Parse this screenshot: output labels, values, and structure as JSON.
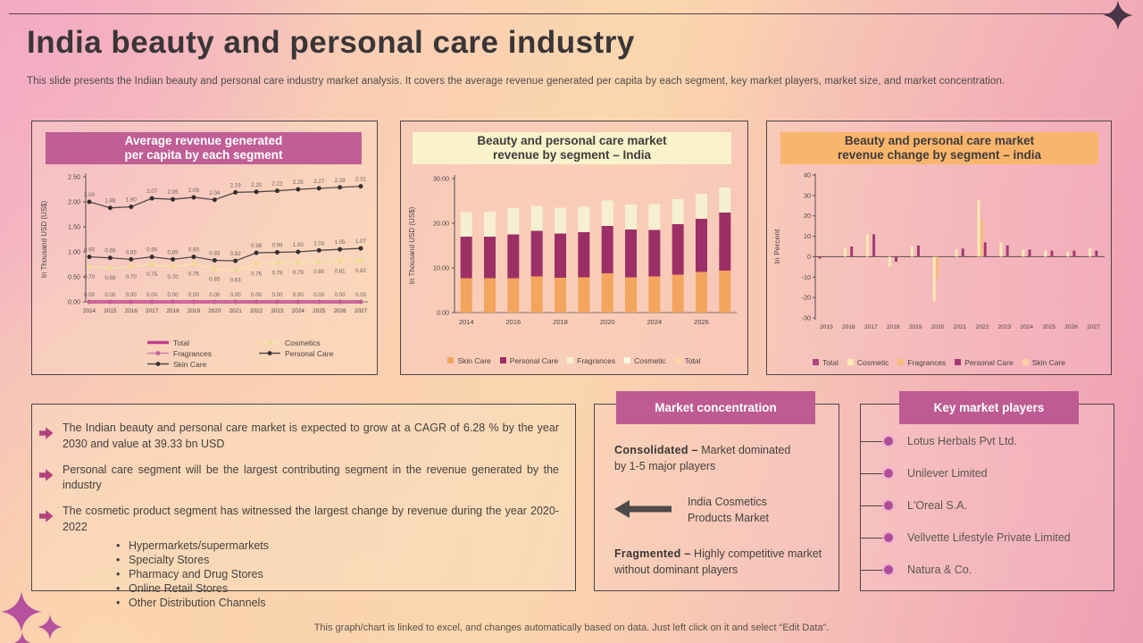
{
  "slide": {
    "title": "India beauty and personal care industry",
    "subtitle": "This slide presents the Indian beauty and personal care industry market analysis. It covers the average revenue generated per capita by each segment, key market players, market size, and market concentration.",
    "footer": "This graph/chart is linked to excel, and changes automatically based on data. Just left click on it and select “Edit Data”."
  },
  "chart_data": [
    {
      "type": "line",
      "title1": "Average revenue generated",
      "title2": "per capita by each segment",
      "ylabel": "In Thousand USD (US$)",
      "ylim": [
        0,
        2.5
      ],
      "ytick_values": [
        0,
        0.5,
        1,
        1.5,
        2,
        2.5
      ],
      "ytick_labels": [
        "0.00",
        "0.50",
        "1.00",
        "1.50",
        "2.00",
        "2.50"
      ],
      "categories": [
        "2014",
        "2015",
        "2016",
        "2017",
        "2018",
        "2019",
        "2020",
        "2021",
        "2022",
        "2023",
        "2024",
        "2025",
        "2026",
        "2027"
      ],
      "grid": false,
      "legend_position": "bottom",
      "series": [
        {
          "name": "Total",
          "color": "#c2418a",
          "marker": "#b8588f",
          "line_width": 3.5,
          "data_labels": "above",
          "values": [
            0,
            0,
            0,
            0,
            0,
            0,
            0,
            0,
            0,
            0,
            0,
            0,
            0,
            0
          ]
        },
        {
          "name": "Cosmetics",
          "color": "#f5e5a9",
          "marker": "#efd98f",
          "line_width": 1.3,
          "data_labels": "below",
          "values": [
            0.7,
            0.68,
            0.7,
            0.75,
            0.7,
            0.76,
            0.65,
            0.63,
            0.76,
            0.78,
            0.79,
            0.8,
            0.81,
            0.82
          ]
        },
        {
          "name": "Fragrances",
          "color": "#d07fae",
          "marker": "#c45f9b",
          "line_width": 1.2,
          "data_labels": "none",
          "values": [
            0,
            0,
            0,
            0,
            0,
            0,
            0,
            0,
            0,
            0,
            0,
            0,
            0,
            0
          ]
        },
        {
          "name": "Personal Care",
          "color": "#55494a",
          "marker": "#352e2f",
          "line_width": 1.3,
          "data_labels": "above",
          "values": [
            2.0,
            1.88,
            1.9,
            2.07,
            2.05,
            2.09,
            2.04,
            2.19,
            2.2,
            2.22,
            2.25,
            2.27,
            2.29,
            2.31
          ]
        },
        {
          "name": "Skin Care",
          "color": "#55494a",
          "marker": "#352e2f",
          "line_width": 1.3,
          "data_labels": "above",
          "values": [
            0.9,
            0.88,
            0.85,
            0.9,
            0.85,
            0.9,
            0.83,
            0.82,
            0.98,
            0.99,
            1.0,
            1.03,
            1.05,
            1.07
          ]
        }
      ]
    },
    {
      "type": "bar-stacked",
      "title1": "Beauty and personal care market",
      "title2": "revenue by segment – India",
      "ylabel": "In Thousand USD (US$)",
      "ylim": [
        0,
        30
      ],
      "ytick_values": [
        0,
        10,
        20,
        30
      ],
      "ytick_labels": [
        "0.00",
        "10.00",
        "20.00",
        "30.00"
      ],
      "x_tick_labels": [
        "2014",
        "2016",
        "2018",
        "2020",
        "2024",
        "2026"
      ],
      "x_tick_slots": [
        0,
        2,
        4,
        6,
        8,
        10
      ],
      "bar_count": 12,
      "grid": false,
      "legend_position": "bottom",
      "series": [
        {
          "name": "Skin Care",
          "color": "#f3a55e",
          "values": [
            7.7,
            7.7,
            7.7,
            8.1,
            7.8,
            7.9,
            8.8,
            7.9,
            8.1,
            8.5,
            9.1,
            9.4
          ]
        },
        {
          "name": "Personal Care",
          "color": "#9d2f67",
          "values": [
            9.3,
            9.3,
            9.8,
            10.2,
            9.9,
            10.1,
            10.6,
            10.7,
            10.4,
            11.3,
            11.9,
            13.0
          ]
        },
        {
          "name": "Fragrances",
          "color": "#f6efd1",
          "values": [
            5.5,
            5.6,
            5.9,
            5.6,
            5.8,
            5.7,
            5.7,
            5.6,
            5.8,
            5.6,
            5.6,
            5.6
          ]
        },
        {
          "name": "Cosmetic",
          "color": "#fbf6e3",
          "values": [
            0,
            0,
            0,
            0,
            0,
            0,
            0,
            0,
            0,
            0,
            0,
            0
          ]
        },
        {
          "name": "Total",
          "color": "#f8d8a2",
          "values": [
            0,
            0,
            0,
            0,
            0,
            0,
            0,
            0,
            0,
            0,
            0,
            0
          ]
        }
      ]
    },
    {
      "type": "bar-grouped",
      "title1": "Beauty and personal care market",
      "title2": "revenue change by segment – india",
      "ylabel": "In Percent",
      "ylim": [
        -30,
        40
      ],
      "ytick_values": [
        40,
        30,
        20,
        10,
        0,
        -10,
        -20,
        -30
      ],
      "ytick_labels": [
        "40",
        "30",
        "20",
        "10",
        "0",
        "-10",
        "-20",
        "-30"
      ],
      "categories": [
        "2015",
        "2016",
        "2017",
        "2018",
        "2019",
        "2020",
        "2021",
        "2022",
        "2023",
        "2024",
        "2025",
        "2026",
        "2027"
      ],
      "grid": false,
      "legend_position": "bottom",
      "series": [
        {
          "name": "Total",
          "color": "#b24580",
          "values": [
            -1,
            0,
            0,
            0,
            0,
            0,
            0,
            0,
            0,
            0,
            0,
            0,
            0
          ]
        },
        {
          "name": "Cosmetic",
          "color": "#fbeab4",
          "values": [
            0,
            4.5,
            11,
            -5,
            5,
            -22,
            3.5,
            28,
            7,
            3.5,
            3,
            2.5,
            4
          ]
        },
        {
          "name": "Fragrances",
          "color": "#f5bc7d",
          "values": [
            0,
            0,
            0,
            0,
            0,
            -10.5,
            0,
            18,
            0,
            0,
            0,
            0,
            0
          ]
        },
        {
          "name": "Personal Care",
          "color": "#a33b73",
          "values": [
            0,
            5,
            11,
            -2.5,
            5.5,
            0,
            4,
            7,
            5.5,
            3.5,
            3,
            3,
            3
          ]
        },
        {
          "name": "Skin Care",
          "color": "#f8d2a0",
          "values": [
            0,
            0,
            0,
            0,
            0,
            0,
            0,
            0,
            0,
            0,
            0,
            0,
            0
          ]
        }
      ]
    }
  ],
  "insights": {
    "bullets": [
      {
        "text": "The Indian beauty and personal care market is expected to grow at a CAGR of 6.28 % by the year 2030 and value at 39.33 bn USD",
        "sub_items": []
      },
      {
        "text": "Personal care segment will be the largest contributing segment in the revenue generated by the industry",
        "sub_items": []
      },
      {
        "text": "The cosmetic product segment has witnessed the largest change by revenue during the year 2020-2022",
        "sub_items": [
          "Hypermarkets/supermarkets",
          "Specialty Stores",
          "Pharmacy and Drug Stores",
          "Online Retail Stores",
          "Other Distribution Channels"
        ]
      }
    ]
  },
  "market_concentration": {
    "header": "Market concentration",
    "consolidated_label": "Consolidated –",
    "consolidated_text": " Market dominated by 1-5 major players",
    "arrow_text": "India Cosmetics Products Market",
    "fragmented_label": "Fragmented –",
    "fragmented_text": " Highly competitive market without dominant players"
  },
  "key_players": {
    "header": "Key market players",
    "players": [
      "Lotus Herbals Pvt Ltd.",
      "Unilever Limited",
      "L'Oreal S.A.",
      "Vellvette Lifestyle Private Limited",
      "Natura & Co."
    ]
  },
  "colors": {
    "accent_magenta": "#bd5b92",
    "banner_cream": "#f9f2ca",
    "banner_orange": "#f9b56c",
    "sparkle_dark": "#4a3548",
    "sparkle_magenta": "#b5519d"
  }
}
